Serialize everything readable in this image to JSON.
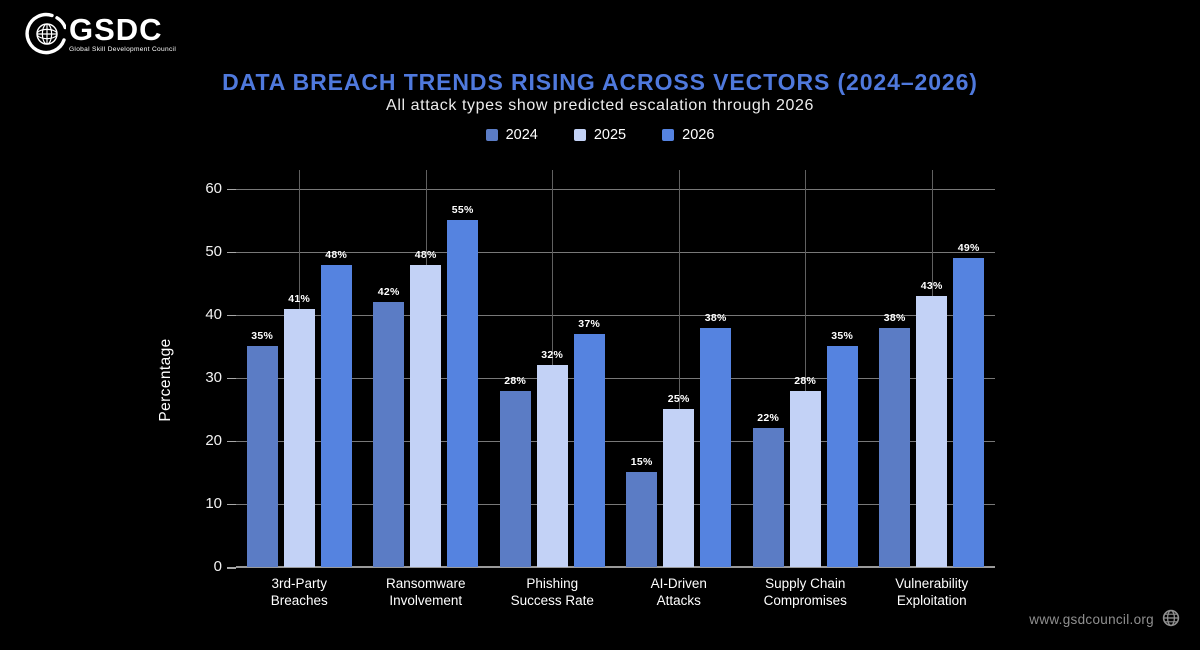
{
  "logo": {
    "name": "GSDC",
    "tagline": "Global Skill Development Council"
  },
  "header": {
    "title": "DATA BREACH TRENDS RISING ACROSS VECTORS (2024–2026)",
    "subtitle": "All attack types show predicted escalation through 2026"
  },
  "chart_data": {
    "type": "bar",
    "title": "DATA BREACH TRENDS RISING ACROSS VECTORS (2024–2026)",
    "subtitle": "All attack types show predicted escalation through 2026",
    "categories": [
      "3rd-Party\nBreaches",
      "Ransomware\nInvolvement",
      "Phishing\nSuccess Rate",
      "AI-Driven\nAttacks",
      "Supply Chain\nCompromises",
      "Vulnerability\nExploitation"
    ],
    "series": [
      {
        "name": "2024",
        "color": "#5b7cc5",
        "values": [
          35,
          42,
          28,
          15,
          22,
          38
        ]
      },
      {
        "name": "2025",
        "color": "#c3d2f6",
        "values": [
          41,
          48,
          32,
          25,
          28,
          43
        ]
      },
      {
        "name": "2026",
        "color": "#5583e0",
        "values": [
          48,
          55,
          37,
          38,
          35,
          49
        ]
      }
    ],
    "xlabel": "",
    "ylabel": "Percentage",
    "yticks": [
      0,
      10,
      20,
      30,
      40,
      50,
      60
    ],
    "ylim": [
      0,
      63
    ],
    "value_suffix": "%",
    "grid": true,
    "legend_position": "top",
    "background": "#000000",
    "title_color": "#4f79dd"
  },
  "footer": {
    "website": "www.gsdcouncil.org"
  }
}
